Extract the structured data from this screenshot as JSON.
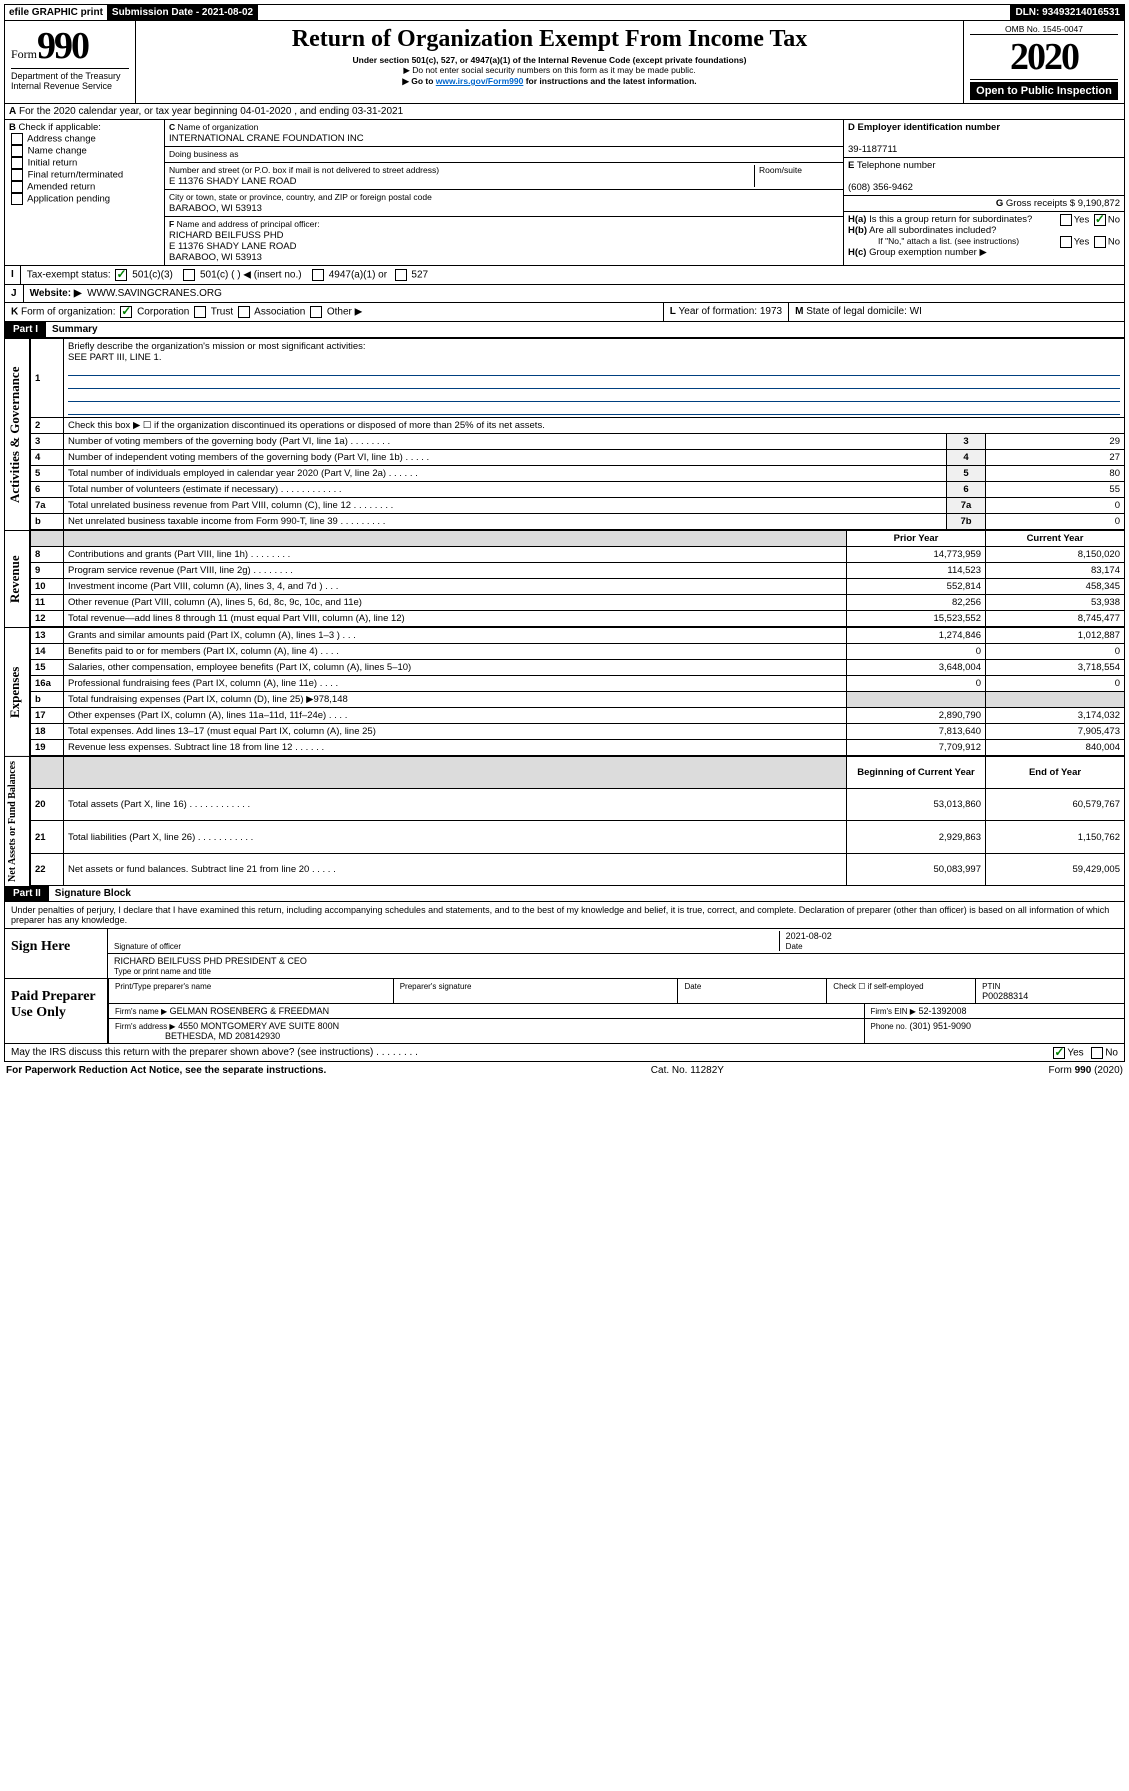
{
  "topbar": {
    "efile": "efile GRAPHIC print",
    "submission_label": "Submission Date - 2021-08-02",
    "dln": "DLN: 93493214016531"
  },
  "header": {
    "form_prefix": "Form",
    "form_number": "990",
    "dept1": "Department of the Treasury",
    "dept2": "Internal Revenue Service",
    "title": "Return of Organization Exempt From Income Tax",
    "subtitle": "Under section 501(c), 527, or 4947(a)(1) of the Internal Revenue Code (except private foundations)",
    "note1": "Do not enter social security numbers on this form as it may be made public.",
    "note2_prefix": "Go to ",
    "note2_link": "www.irs.gov/Form990",
    "note2_suffix": " for instructions and the latest information.",
    "omb": "OMB No. 1545-0047",
    "year": "2020",
    "open": "Open to Public Inspection"
  },
  "section_a": "For the 2020 calendar year, or tax year beginning 04-01-2020    , and ending 03-31-2021",
  "check_b": {
    "label": "Check if applicable:",
    "items": [
      "Address change",
      "Name change",
      "Initial return",
      "Final return/terminated",
      "Amended return",
      "Application pending"
    ]
  },
  "org": {
    "c_label": "Name of organization",
    "name": "INTERNATIONAL CRANE FOUNDATION INC",
    "dba_label": "Doing business as",
    "addr_label": "Number and street (or P.O. box if mail is not delivered to street address)",
    "room_label": "Room/suite",
    "addr": "E 11376 SHADY LANE ROAD",
    "city_label": "City or town, state or province, country, and ZIP or foreign postal code",
    "city": "BARABOO, WI  53913",
    "f_label": "Name and address of principal officer:",
    "officer": "RICHARD BEILFUSS PHD",
    "officer_addr1": "E 11376 SHADY LANE ROAD",
    "officer_addr2": "BARABOO, WI  53913"
  },
  "right_col": {
    "d_label": "Employer identification number",
    "ein": "39-1187711",
    "e_label": "Telephone number",
    "phone": "(608) 356-9462",
    "g_label": "Gross receipts $",
    "gross": "9,190,872",
    "ha": "Is this a group return for subordinates?",
    "hb": "Are all subordinates included?",
    "hb_note": "If \"No,\" attach a list. (see instructions)",
    "hc": "Group exemption number ▶"
  },
  "tax_exempt": {
    "label": "Tax-exempt status:",
    "opt1": "501(c)(3)",
    "opt2": "501(c) (   ) ◀ (insert no.)",
    "opt3": "4947(a)(1) or",
    "opt4": "527"
  },
  "website": {
    "label": "Website: ▶",
    "url": "WWW.SAVINGCRANES.ORG"
  },
  "k": {
    "label": "Form of organization:",
    "corp": "Corporation",
    "trust": "Trust",
    "assoc": "Association",
    "other": "Other ▶",
    "l_label": "Year of formation:",
    "l_val": "1973",
    "m_label": "State of legal domicile:",
    "m_val": "WI"
  },
  "part1": {
    "header": "Part I",
    "title": "Summary",
    "l1": "Briefly describe the organization's mission or most significant activities:",
    "l1_val": "SEE PART III, LINE 1.",
    "l2": "Check this box ▶ ☐  if the organization discontinued its operations or disposed of more than 25% of its net assets.",
    "rows_gov": [
      {
        "n": "3",
        "desc": "Number of voting members of the governing body (Part VI, line 1a)   .    .    .    .    .    .    .    .",
        "box": "3",
        "v": "29"
      },
      {
        "n": "4",
        "desc": "Number of independent voting members of the governing body (Part VI, line 1b)   .    .    .    .    .",
        "box": "4",
        "v": "27"
      },
      {
        "n": "5",
        "desc": "Total number of individuals employed in calendar year 2020 (Part V, line 2a)   .    .    .    .    .    .",
        "box": "5",
        "v": "80"
      },
      {
        "n": "6",
        "desc": "Total number of volunteers (estimate if necessary)   .    .    .    .    .    .    .    .    .    .    .    .",
        "box": "6",
        "v": "55"
      },
      {
        "n": "7a",
        "desc": "Total unrelated business revenue from Part VIII, column (C), line 12   .    .    .    .    .    .    .    .",
        "box": "7a",
        "v": "0"
      },
      {
        "n": "b",
        "desc": "Net unrelated business taxable income from Form 990-T, line 39   .    .    .    .    .    .    .    .    .",
        "box": "7b",
        "v": "0"
      }
    ],
    "col_prior": "Prior Year",
    "col_curr": "Current Year",
    "rows_rev": [
      {
        "n": "8",
        "desc": "Contributions and grants (Part VIII, line 1h)   .    .    .    .    .    .    .    .",
        "p": "14,773,959",
        "c": "8,150,020"
      },
      {
        "n": "9",
        "desc": "Program service revenue (Part VIII, line 2g)   .    .    .    .    .    .    .    .",
        "p": "114,523",
        "c": "83,174"
      },
      {
        "n": "10",
        "desc": "Investment income (Part VIII, column (A), lines 3, 4, and 7d )   .    .    .",
        "p": "552,814",
        "c": "458,345"
      },
      {
        "n": "11",
        "desc": "Other revenue (Part VIII, column (A), lines 5, 6d, 8c, 9c, 10c, and 11e)",
        "p": "82,256",
        "c": "53,938"
      },
      {
        "n": "12",
        "desc": "Total revenue—add lines 8 through 11 (must equal Part VIII, column (A), line 12)",
        "p": "15,523,552",
        "c": "8,745,477"
      }
    ],
    "rows_exp": [
      {
        "n": "13",
        "desc": "Grants and similar amounts paid (Part IX, column (A), lines 1–3 )   .    .    .",
        "p": "1,274,846",
        "c": "1,012,887"
      },
      {
        "n": "14",
        "desc": "Benefits paid to or for members (Part IX, column (A), line 4)   .    .    .    .",
        "p": "0",
        "c": "0"
      },
      {
        "n": "15",
        "desc": "Salaries, other compensation, employee benefits (Part IX, column (A), lines 5–10)",
        "p": "3,648,004",
        "c": "3,718,554"
      },
      {
        "n": "16a",
        "desc": "Professional fundraising fees (Part IX, column (A), line 11e)   .    .    .    .",
        "p": "0",
        "c": "0"
      },
      {
        "n": "b",
        "desc": "Total fundraising expenses (Part IX, column (D), line 25) ▶978,148",
        "p": "",
        "c": "",
        "shade": true
      },
      {
        "n": "17",
        "desc": "Other expenses (Part IX, column (A), lines 11a–11d, 11f–24e)   .    .    .    .",
        "p": "2,890,790",
        "c": "3,174,032"
      },
      {
        "n": "18",
        "desc": "Total expenses. Add lines 13–17 (must equal Part IX, column (A), line 25)",
        "p": "7,813,640",
        "c": "7,905,473"
      },
      {
        "n": "19",
        "desc": "Revenue less expenses. Subtract line 18 from line 12   .    .    .    .    .    .",
        "p": "7,709,912",
        "c": "840,004"
      }
    ],
    "col_begin": "Beginning of Current Year",
    "col_end": "End of Year",
    "rows_net": [
      {
        "n": "20",
        "desc": "Total assets (Part X, line 16)   .    .    .    .    .    .    .    .    .    .    .    .",
        "p": "53,013,860",
        "c": "60,579,767"
      },
      {
        "n": "21",
        "desc": "Total liabilities (Part X, line 26)   .    .    .    .    .    .    .    .    .    .    .",
        "p": "2,929,863",
        "c": "1,150,762"
      },
      {
        "n": "22",
        "desc": "Net assets or fund balances. Subtract line 21 from line 20   .    .    .    .    .",
        "p": "50,083,997",
        "c": "59,429,005"
      }
    ]
  },
  "vlabels": {
    "gov": "Activities & Governance",
    "rev": "Revenue",
    "exp": "Expenses",
    "net": "Net Assets or Fund Balances"
  },
  "part2": {
    "header": "Part II",
    "title": "Signature Block",
    "decl": "Under penalties of perjury, I declare that I have examined this return, including accompanying schedules and statements, and to the best of my knowledge and belief, it is true, correct, and complete. Declaration of preparer (other than officer) is based on all information of which preparer has any knowledge.",
    "sign_here": "Sign Here",
    "sig_officer": "Signature of officer",
    "date_label": "Date",
    "date_val": "2021-08-02",
    "name_title": "RICHARD BEILFUSS PHD  PRESIDENT & CEO",
    "name_sub": "Type or print name and title",
    "paid": "Paid Preparer Use Only",
    "prep_name_label": "Print/Type preparer's name",
    "prep_sig_label": "Preparer's signature",
    "check_self": "Check ☐ if self-employed",
    "ptin_label": "PTIN",
    "ptin": "P00288314",
    "firm_name_label": "Firm's name    ▶",
    "firm_name": "GELMAN ROSENBERG & FREEDMAN",
    "firm_ein_label": "Firm's EIN ▶",
    "firm_ein": "52-1392008",
    "firm_addr_label": "Firm's address ▶",
    "firm_addr1": "4550 MONTGOMERY AVE SUITE 800N",
    "firm_addr2": "BETHESDA, MD  208142930",
    "phone_label": "Phone no.",
    "phone": "(301) 951-9090",
    "discuss": "May the IRS discuss this return with the preparer shown above? (see instructions)    .    .    .    .    .    .    .    .",
    "yes": "Yes",
    "no": "No"
  },
  "footer": {
    "pra": "For Paperwork Reduction Act Notice, see the separate instructions.",
    "cat": "Cat. No. 11282Y",
    "form": "Form 990 (2020)"
  }
}
